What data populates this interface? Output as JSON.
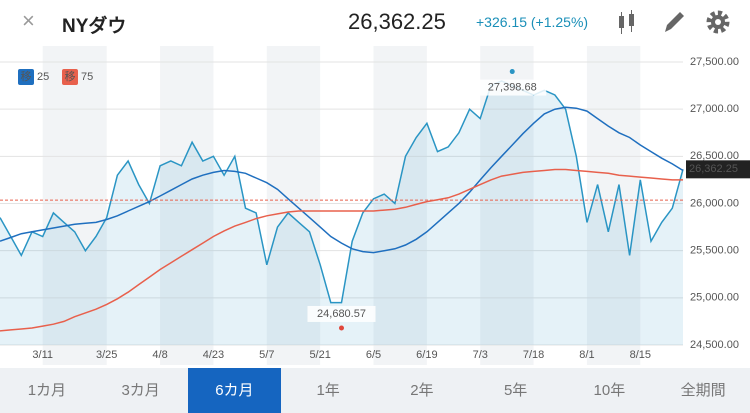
{
  "header": {
    "close": "×",
    "title": "NYダウ",
    "price": "26,362.25",
    "change": "+326.15 (+1.25%)"
  },
  "chart_data": {
    "type": "line",
    "categories": [
      null,
      null,
      null,
      null,
      "3/11",
      null,
      null,
      null,
      null,
      null,
      "3/25",
      null,
      null,
      null,
      null,
      "4/8",
      null,
      null,
      null,
      null,
      "4/23",
      null,
      null,
      null,
      null,
      "5/7",
      null,
      null,
      null,
      null,
      "5/21",
      null,
      null,
      null,
      null,
      "6/5",
      null,
      null,
      null,
      null,
      "6/19",
      null,
      null,
      null,
      null,
      "7/3",
      null,
      null,
      null,
      null,
      "7/18",
      null,
      null,
      null,
      null,
      "8/1",
      null,
      null,
      null,
      null,
      "8/15",
      null,
      null,
      null,
      null
    ],
    "series": [
      {
        "name": "NYダウ",
        "color": "#2a95c4",
        "area": true,
        "values": [
          25850,
          25650,
          25450,
          25700,
          25650,
          25900,
          25800,
          25700,
          25500,
          25650,
          25850,
          26300,
          26450,
          26200,
          26000,
          26400,
          26450,
          26400,
          26650,
          26450,
          26500,
          26300,
          26500,
          25950,
          25900,
          25350,
          25750,
          25900,
          25800,
          25700,
          25350,
          24950,
          24950,
          25600,
          25900,
          26050,
          26100,
          26000,
          26500,
          26700,
          26850,
          26550,
          26600,
          26750,
          27000,
          26900,
          27250,
          27300,
          27250,
          27200,
          27150,
          27200,
          27150,
          27000,
          26500,
          25800,
          26200,
          25700,
          26200,
          25450,
          26250,
          25600,
          25800,
          25950,
          26362.25
        ]
      },
      {
        "name": "25",
        "color": "#1f6fbf",
        "badge": "移",
        "values": [
          25600,
          25640,
          25680,
          25700,
          25720,
          25740,
          25760,
          25780,
          25790,
          25800,
          25830,
          25870,
          25920,
          25970,
          26020,
          26080,
          26140,
          26200,
          26260,
          26300,
          26330,
          26350,
          26340,
          26320,
          26270,
          26220,
          26150,
          26050,
          25950,
          25850,
          25750,
          25650,
          25580,
          25520,
          25490,
          25480,
          25500,
          25520,
          25560,
          25620,
          25700,
          25800,
          25900,
          26000,
          26120,
          26250,
          26380,
          26500,
          26620,
          26740,
          26850,
          26950,
          27000,
          27020,
          27010,
          26980,
          26900,
          26820,
          26750,
          26700,
          26620,
          26550,
          26480,
          26420,
          26350
        ]
      },
      {
        "name": "75",
        "color": "#e8604c",
        "badge": "移",
        "values": [
          24650,
          24660,
          24670,
          24680,
          24700,
          24720,
          24750,
          24800,
          24840,
          24880,
          24930,
          24990,
          25060,
          25140,
          25220,
          25300,
          25370,
          25440,
          25510,
          25580,
          25650,
          25710,
          25760,
          25800,
          25840,
          25870,
          25890,
          25910,
          25920,
          25920,
          25920,
          25920,
          25920,
          25920,
          25920,
          25920,
          25930,
          25940,
          25960,
          25990,
          26020,
          26040,
          26060,
          26100,
          26150,
          26200,
          26250,
          26290,
          26310,
          26330,
          26340,
          26350,
          26360,
          26360,
          26350,
          26340,
          26330,
          26320,
          26300,
          26290,
          26280,
          26270,
          26260,
          26250,
          26250
        ]
      }
    ],
    "high": {
      "index": 48,
      "value": 27398.68,
      "label": "27,398.68"
    },
    "low": {
      "index": 32,
      "value": 24680.57,
      "label": "24,680.57"
    },
    "last": {
      "value": 26362.25,
      "label": "26,362.25"
    },
    "previous_close": 26036.1,
    "ylim": [
      24500,
      27500
    ],
    "yticks": [
      {
        "value": 24500,
        "label": "24,500.00"
      },
      {
        "value": 25000,
        "label": "25,000.00"
      },
      {
        "value": 25500,
        "label": "25,500.00"
      },
      {
        "value": 26000,
        "label": "26,000.00"
      },
      {
        "value": 26500,
        "label": "26,500.00"
      },
      {
        "value": 27000,
        "label": "27,000.00"
      },
      {
        "value": 27500,
        "label": "27,500.00"
      }
    ]
  },
  "tabs": {
    "items": [
      "1カ月",
      "3カ月",
      "6カ月",
      "1年",
      "2年",
      "5年",
      "10年",
      "全期間"
    ],
    "active": 2
  }
}
